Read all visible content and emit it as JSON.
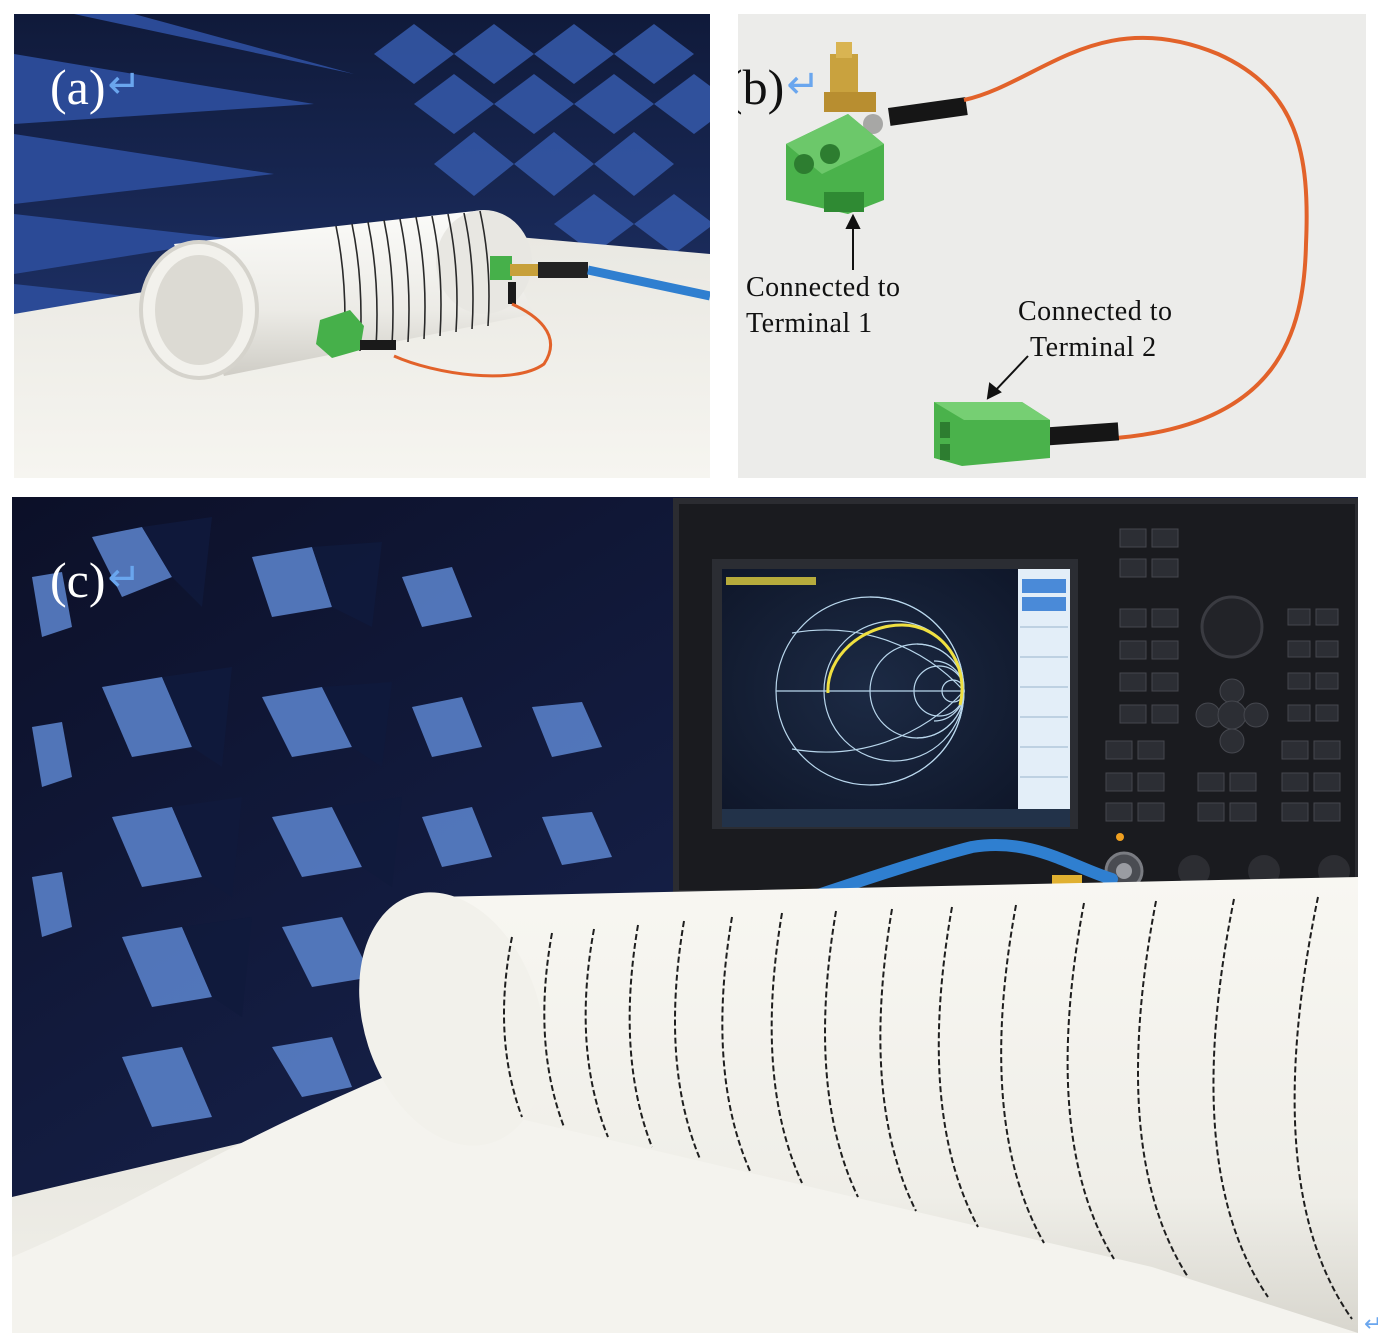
{
  "panel_a": {
    "tag": "(a)",
    "return_mark": "↵"
  },
  "panel_b": {
    "tag": "(b)",
    "return_mark": "↵",
    "label_terminal_1": [
      "Connected to",
      "Terminal 1"
    ],
    "label_terminal_2": [
      "Connected to",
      "Terminal 2"
    ]
  },
  "panel_c": {
    "tag": "(c)",
    "return_mark": "↵"
  },
  "stray_mark": "↵",
  "colors": {
    "chamber_blue": "#27407a",
    "foam_white": "#efeee8",
    "connector_green": "#46b04a",
    "wire_orange": "#e2622a",
    "cable_blue": "#2f7fd0",
    "smith_trace_yellow": "#f0e040",
    "smith_grid": "#b8d6ec",
    "tag_return_blue": "#6aa6ee"
  }
}
